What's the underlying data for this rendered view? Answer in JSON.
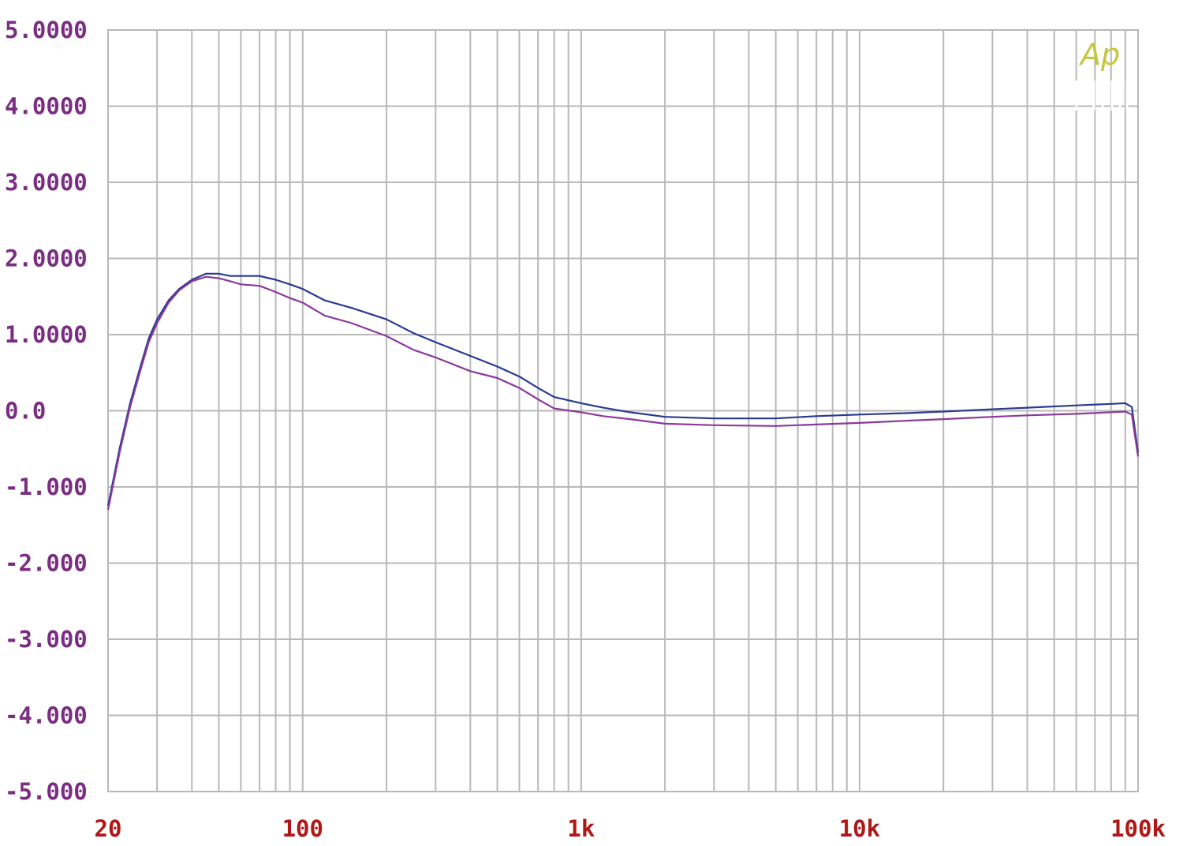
{
  "chart_data": {
    "type": "line",
    "x_scale": "log",
    "xlim": [
      20,
      100000
    ],
    "ylim": [
      -5,
      5
    ],
    "grid": true,
    "y_ticks": [
      {
        "value": 5,
        "label": "5.0000"
      },
      {
        "value": 4,
        "label": "4.0000"
      },
      {
        "value": 3,
        "label": "3.0000"
      },
      {
        "value": 2,
        "label": "2.0000"
      },
      {
        "value": 1,
        "label": "1.0000"
      },
      {
        "value": 0,
        "label": "0.0"
      },
      {
        "value": -1,
        "label": "-1.000"
      },
      {
        "value": -2,
        "label": "-2.000"
      },
      {
        "value": -3,
        "label": "-3.000"
      },
      {
        "value": -4,
        "label": "-4.000"
      },
      {
        "value": -5,
        "label": "-5.000"
      }
    ],
    "x_ticks": [
      {
        "value": 20,
        "label": "20"
      },
      {
        "value": 100,
        "label": "100"
      },
      {
        "value": 1000,
        "label": "1k"
      },
      {
        "value": 10000,
        "label": "10k"
      },
      {
        "value": 100000,
        "label": "100k"
      }
    ],
    "logo": "Ap",
    "colors": {
      "grid": "#b8b8b8",
      "y_tick_labels": "#7a2d82",
      "x_tick_labels": "#b01818",
      "logo": "#c6c640"
    },
    "series": [
      {
        "color": "#2a3a8e",
        "points": [
          [
            20,
            -1.25
          ],
          [
            22,
            -0.5
          ],
          [
            24,
            0.1
          ],
          [
            26,
            0.55
          ],
          [
            28,
            0.95
          ],
          [
            30,
            1.2
          ],
          [
            33,
            1.45
          ],
          [
            36,
            1.6
          ],
          [
            40,
            1.72
          ],
          [
            45,
            1.8
          ],
          [
            50,
            1.8
          ],
          [
            55,
            1.77
          ],
          [
            60,
            1.77
          ],
          [
            70,
            1.77
          ],
          [
            80,
            1.72
          ],
          [
            90,
            1.66
          ],
          [
            100,
            1.6
          ],
          [
            120,
            1.45
          ],
          [
            150,
            1.35
          ],
          [
            200,
            1.2
          ],
          [
            250,
            1.02
          ],
          [
            300,
            0.9
          ],
          [
            400,
            0.72
          ],
          [
            500,
            0.58
          ],
          [
            600,
            0.45
          ],
          [
            700,
            0.3
          ],
          [
            800,
            0.18
          ],
          [
            1000,
            0.1
          ],
          [
            1200,
            0.04
          ],
          [
            1500,
            -0.02
          ],
          [
            2000,
            -0.08
          ],
          [
            3000,
            -0.1
          ],
          [
            5000,
            -0.1
          ],
          [
            7000,
            -0.07
          ],
          [
            10000,
            -0.05
          ],
          [
            15000,
            -0.03
          ],
          [
            20000,
            -0.01
          ],
          [
            30000,
            0.02
          ],
          [
            40000,
            0.04
          ],
          [
            60000,
            0.07
          ],
          [
            80000,
            0.09
          ],
          [
            90000,
            0.1
          ],
          [
            95000,
            0.05
          ],
          [
            100000,
            -0.55
          ]
        ]
      },
      {
        "color": "#8a3a9a",
        "points": [
          [
            20,
            -1.3
          ],
          [
            22,
            -0.55
          ],
          [
            24,
            0.05
          ],
          [
            26,
            0.5
          ],
          [
            28,
            0.9
          ],
          [
            30,
            1.15
          ],
          [
            33,
            1.42
          ],
          [
            36,
            1.58
          ],
          [
            40,
            1.7
          ],
          [
            45,
            1.76
          ],
          [
            50,
            1.74
          ],
          [
            55,
            1.7
          ],
          [
            60,
            1.66
          ],
          [
            70,
            1.64
          ],
          [
            80,
            1.56
          ],
          [
            90,
            1.48
          ],
          [
            100,
            1.42
          ],
          [
            120,
            1.25
          ],
          [
            150,
            1.15
          ],
          [
            200,
            0.98
          ],
          [
            250,
            0.8
          ],
          [
            300,
            0.7
          ],
          [
            400,
            0.52
          ],
          [
            500,
            0.43
          ],
          [
            600,
            0.3
          ],
          [
            700,
            0.15
          ],
          [
            800,
            0.03
          ],
          [
            1000,
            -0.02
          ],
          [
            1200,
            -0.07
          ],
          [
            1500,
            -0.11
          ],
          [
            2000,
            -0.17
          ],
          [
            3000,
            -0.19
          ],
          [
            5000,
            -0.2
          ],
          [
            7000,
            -0.18
          ],
          [
            10000,
            -0.16
          ],
          [
            15000,
            -0.13
          ],
          [
            20000,
            -0.11
          ],
          [
            30000,
            -0.08
          ],
          [
            40000,
            -0.06
          ],
          [
            60000,
            -0.04
          ],
          [
            80000,
            -0.02
          ],
          [
            90000,
            -0.01
          ],
          [
            95000,
            -0.05
          ],
          [
            100000,
            -0.6
          ]
        ]
      }
    ]
  }
}
